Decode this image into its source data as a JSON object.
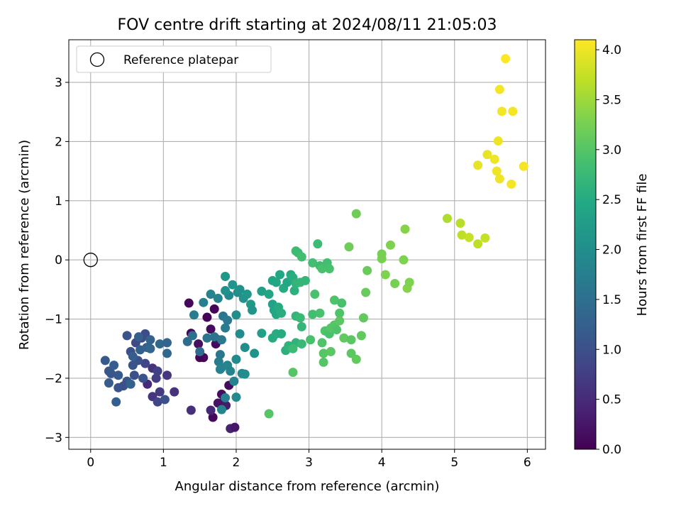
{
  "chart_data": {
    "type": "scatter",
    "title": "FOV centre drift starting at 2024/08/11 21:05:03",
    "xlabel": "Angular distance from reference (arcmin)",
    "ylabel": "Rotation from reference (arcmin)",
    "xlim": [
      -0.3,
      6.25
    ],
    "ylim": [
      -3.2,
      3.72
    ],
    "xticks": [
      0,
      1,
      2,
      3,
      4,
      5,
      6
    ],
    "yticks": [
      -3,
      -2,
      -1,
      0,
      1,
      2,
      3
    ],
    "grid": true,
    "legend": {
      "position": "top-left",
      "entries": [
        "Reference platepar"
      ]
    },
    "reference_point": {
      "x": 0,
      "y": 0
    },
    "colorbar": {
      "label": "Hours from first FF file",
      "range": [
        0.0,
        4.1
      ],
      "ticks": [
        "0.0",
        "0.5",
        "1.0",
        "1.5",
        "2.0",
        "2.5",
        "3.0",
        "3.5",
        "4.0"
      ],
      "colormap": [
        "#440154",
        "#482475",
        "#414487",
        "#355f8d",
        "#2a788e",
        "#21918c",
        "#22a884",
        "#44bf70",
        "#7ad151",
        "#bddf26",
        "#fde725"
      ]
    },
    "points": [
      [
        1.35,
        -0.73,
        0.08
      ],
      [
        1.38,
        -1.24,
        0.07
      ],
      [
        1.55,
        -1.65,
        0.08
      ],
      [
        1.5,
        -1.65,
        0.06
      ],
      [
        1.65,
        -1.17,
        0.12
      ],
      [
        1.72,
        -1.42,
        0.1
      ],
      [
        1.6,
        -0.97,
        0.05
      ],
      [
        1.7,
        -0.83,
        0.06
      ],
      [
        1.48,
        -1.42,
        0.18
      ],
      [
        1.75,
        -1.35,
        0.2
      ],
      [
        1.68,
        -2.66,
        0.1
      ],
      [
        1.75,
        -2.42,
        0.22
      ],
      [
        1.82,
        -2.4,
        0.2
      ],
      [
        1.9,
        -2.12,
        0.12
      ],
      [
        1.8,
        -2.27,
        0.15
      ],
      [
        1.86,
        -2.46,
        0.3
      ],
      [
        1.92,
        -2.85,
        0.4
      ],
      [
        1.98,
        -2.83,
        0.25
      ],
      [
        1.65,
        -2.54,
        0.45
      ],
      [
        1.38,
        -2.54,
        0.55
      ],
      [
        1.15,
        -2.23,
        0.6
      ],
      [
        0.85,
        -1.83,
        0.6
      ],
      [
        0.78,
        -2.1,
        0.5
      ],
      [
        0.85,
        -2.31,
        0.65
      ],
      [
        0.95,
        -2.23,
        0.7
      ],
      [
        1.05,
        -1.95,
        0.65
      ],
      [
        0.9,
        -2.0,
        0.75
      ],
      [
        0.92,
        -2.4,
        0.85
      ],
      [
        1.02,
        -2.36,
        1.0
      ],
      [
        0.92,
        -1.88,
        0.8
      ],
      [
        0.75,
        -1.75,
        0.85
      ],
      [
        0.7,
        -1.32,
        0.95
      ],
      [
        0.75,
        -1.25,
        0.95
      ],
      [
        0.62,
        -1.4,
        0.9
      ],
      [
        0.65,
        -1.7,
        1.0
      ],
      [
        0.72,
        -2.0,
        1.05
      ],
      [
        0.55,
        -1.55,
        1.0
      ],
      [
        0.5,
        -1.28,
        1.05
      ],
      [
        0.58,
        -1.78,
        1.05
      ],
      [
        0.6,
        -1.95,
        1.0
      ],
      [
        0.5,
        -2.05,
        1.1
      ],
      [
        0.45,
        -2.13,
        1.0
      ],
      [
        0.38,
        -2.16,
        1.05
      ],
      [
        0.28,
        -1.92,
        1.1
      ],
      [
        0.2,
        -1.7,
        1.15
      ],
      [
        0.25,
        -1.88,
        1.12
      ],
      [
        0.32,
        -1.78,
        1.2
      ],
      [
        0.38,
        -1.95,
        1.15
      ],
      [
        0.25,
        -2.08,
        1.2
      ],
      [
        0.35,
        -2.4,
        1.25
      ],
      [
        0.55,
        -2.1,
        1.3
      ],
      [
        0.58,
        -1.63,
        1.2
      ],
      [
        0.68,
        -1.52,
        1.25
      ],
      [
        0.77,
        -1.48,
        1.3
      ],
      [
        0.82,
        -1.5,
        1.35
      ],
      [
        0.95,
        -1.42,
        1.4
      ],
      [
        1.05,
        -1.4,
        1.35
      ],
      [
        1.05,
        -1.58,
        1.4
      ],
      [
        0.82,
        -1.35,
        1.3
      ],
      [
        0.66,
        -1.3,
        1.25
      ],
      [
        1.33,
        -1.38,
        1.45
      ],
      [
        1.4,
        -1.28,
        1.5
      ],
      [
        1.5,
        -1.55,
        1.45
      ],
      [
        1.6,
        -1.32,
        1.6
      ],
      [
        1.7,
        -1.3,
        1.55
      ],
      [
        1.42,
        -0.93,
        1.7
      ],
      [
        1.55,
        -0.72,
        1.75
      ],
      [
        1.65,
        -0.58,
        1.8
      ],
      [
        1.75,
        -0.65,
        1.85
      ],
      [
        1.9,
        -0.6,
        1.9
      ],
      [
        1.82,
        -0.95,
        1.6
      ],
      [
        1.88,
        -1.02,
        1.65
      ],
      [
        1.85,
        -1.15,
        1.7
      ],
      [
        1.8,
        -1.35,
        1.65
      ],
      [
        1.78,
        -1.6,
        1.6
      ],
      [
        1.76,
        -1.72,
        1.7
      ],
      [
        1.78,
        -1.85,
        1.75
      ],
      [
        1.8,
        -1.82,
        1.8
      ],
      [
        1.88,
        -1.78,
        1.85
      ],
      [
        1.92,
        -1.88,
        1.8
      ],
      [
        1.85,
        -2.33,
        1.75
      ],
      [
        1.8,
        -2.53,
        1.85
      ],
      [
        1.97,
        -2.05,
        1.8
      ],
      [
        2.0,
        -2.32,
        1.9
      ],
      [
        2.08,
        -1.92,
        1.9
      ],
      [
        2.12,
        -1.93,
        2.0
      ],
      [
        2.0,
        -1.68,
        1.95
      ],
      [
        2.12,
        -1.48,
        2.0
      ],
      [
        2.25,
        -1.58,
        2.05
      ],
      [
        2.05,
        -1.25,
        1.95
      ],
      [
        2.0,
        -0.93,
        2.0
      ],
      [
        2.02,
        -0.55,
        2.0
      ],
      [
        2.05,
        -0.5,
        2.05
      ],
      [
        2.1,
        -0.65,
        2.1
      ],
      [
        2.15,
        -0.58,
        2.15
      ],
      [
        2.2,
        -0.75,
        2.2
      ],
      [
        2.22,
        -0.85,
        2.1
      ],
      [
        1.85,
        -0.28,
        2.15
      ],
      [
        1.85,
        -0.52,
        2.05
      ],
      [
        1.95,
        -0.42,
        2.1
      ],
      [
        2.35,
        -0.53,
        2.3
      ],
      [
        2.35,
        -1.24,
        2.3
      ],
      [
        2.45,
        -0.58,
        2.4
      ],
      [
        2.5,
        -0.35,
        2.4
      ],
      [
        2.55,
        -0.38,
        2.45
      ],
      [
        2.6,
        -0.25,
        2.45
      ],
      [
        2.65,
        -0.48,
        2.5
      ],
      [
        2.7,
        -0.38,
        2.45
      ],
      [
        2.75,
        -0.25,
        2.5
      ],
      [
        2.78,
        -0.3,
        2.55
      ],
      [
        2.5,
        -0.75,
        2.35
      ],
      [
        2.52,
        -0.85,
        2.4
      ],
      [
        2.55,
        -0.92,
        2.45
      ],
      [
        2.58,
        -0.8,
        2.5
      ],
      [
        2.62,
        -0.9,
        2.55
      ],
      [
        2.5,
        -1.32,
        2.5
      ],
      [
        2.55,
        -1.25,
        2.55
      ],
      [
        2.62,
        -1.25,
        2.5
      ],
      [
        2.68,
        -1.53,
        2.6
      ],
      [
        2.72,
        -1.45,
        2.65
      ],
      [
        2.8,
        -0.52,
        2.6
      ],
      [
        2.82,
        -0.4,
        2.65
      ],
      [
        2.88,
        -0.38,
        2.7
      ],
      [
        2.95,
        -0.35,
        2.7
      ],
      [
        2.82,
        -0.95,
        2.7
      ],
      [
        2.88,
        -0.98,
        2.75
      ],
      [
        2.9,
        -1.13,
        2.7
      ],
      [
        2.82,
        -1.4,
        2.65
      ],
      [
        2.78,
        -1.5,
        2.8
      ],
      [
        2.9,
        -1.42,
        2.75
      ],
      [
        2.82,
        0.15,
        2.8
      ],
      [
        2.85,
        0.12,
        2.8
      ],
      [
        2.9,
        0.05,
        2.85
      ],
      [
        3.12,
        0.27,
        2.8
      ],
      [
        3.05,
        -0.05,
        2.85
      ],
      [
        3.15,
        -0.1,
        2.8
      ],
      [
        3.18,
        -0.15,
        2.9
      ],
      [
        3.25,
        -0.05,
        2.85
      ],
      [
        3.28,
        -0.15,
        2.9
      ],
      [
        3.08,
        -0.58,
        2.9
      ],
      [
        3.05,
        -0.92,
        2.85
      ],
      [
        3.15,
        -0.9,
        2.9
      ],
      [
        3.22,
        -1.2,
        2.95
      ],
      [
        3.28,
        -1.25,
        2.9
      ],
      [
        3.3,
        -1.15,
        3.0
      ],
      [
        3.35,
        -1.1,
        3.0
      ],
      [
        3.38,
        -1.18,
        2.95
      ],
      [
        3.42,
        -0.9,
        2.95
      ],
      [
        3.35,
        -0.68,
        2.95
      ],
      [
        3.45,
        -0.73,
        2.9
      ],
      [
        3.02,
        -1.35,
        2.9
      ],
      [
        3.18,
        -1.4,
        2.95
      ],
      [
        3.2,
        -1.58,
        3.0
      ],
      [
        3.2,
        -1.73,
        3.0
      ],
      [
        3.3,
        -1.55,
        3.05
      ],
      [
        3.42,
        -1.03,
        3.05
      ],
      [
        3.48,
        -1.32,
        3.1
      ],
      [
        3.58,
        -1.35,
        3.05
      ],
      [
        3.58,
        -1.58,
        3.05
      ],
      [
        3.65,
        -1.68,
        3.1
      ],
      [
        3.72,
        -1.28,
        3.1
      ],
      [
        3.75,
        -0.98,
        3.1
      ],
      [
        3.78,
        -0.55,
        3.15
      ],
      [
        3.8,
        -0.18,
        3.15
      ],
      [
        2.78,
        -1.9,
        3.0
      ],
      [
        2.45,
        -2.6,
        3.0
      ],
      [
        3.55,
        0.22,
        3.2
      ],
      [
        3.65,
        0.78,
        3.2
      ],
      [
        4.0,
        0.1,
        3.25
      ],
      [
        4.0,
        0.02,
        3.25
      ],
      [
        4.05,
        -0.25,
        3.3
      ],
      [
        4.12,
        0.25,
        3.3
      ],
      [
        4.18,
        -0.4,
        3.25
      ],
      [
        4.3,
        0.0,
        3.3
      ],
      [
        4.32,
        0.52,
        3.35
      ],
      [
        4.35,
        -0.48,
        3.35
      ],
      [
        4.38,
        -0.38,
        3.3
      ],
      [
        4.9,
        0.7,
        3.6
      ],
      [
        5.08,
        0.62,
        3.65
      ],
      [
        5.1,
        0.42,
        3.7
      ],
      [
        5.2,
        0.38,
        3.75
      ],
      [
        5.32,
        0.27,
        3.7
      ],
      [
        5.42,
        0.37,
        3.75
      ],
      [
        5.32,
        1.6,
        3.95
      ],
      [
        5.45,
        1.78,
        3.95
      ],
      [
        5.55,
        1.7,
        4.0
      ],
      [
        5.58,
        1.5,
        4.0
      ],
      [
        5.62,
        1.37,
        4.0
      ],
      [
        5.78,
        1.28,
        4.05
      ],
      [
        5.95,
        1.58,
        4.05
      ],
      [
        5.6,
        2.01,
        4.0
      ],
      [
        5.65,
        2.51,
        4.05
      ],
      [
        5.8,
        2.51,
        4.05
      ],
      [
        5.62,
        2.88,
        4.05
      ],
      [
        5.7,
        3.4,
        4.1
      ]
    ]
  }
}
